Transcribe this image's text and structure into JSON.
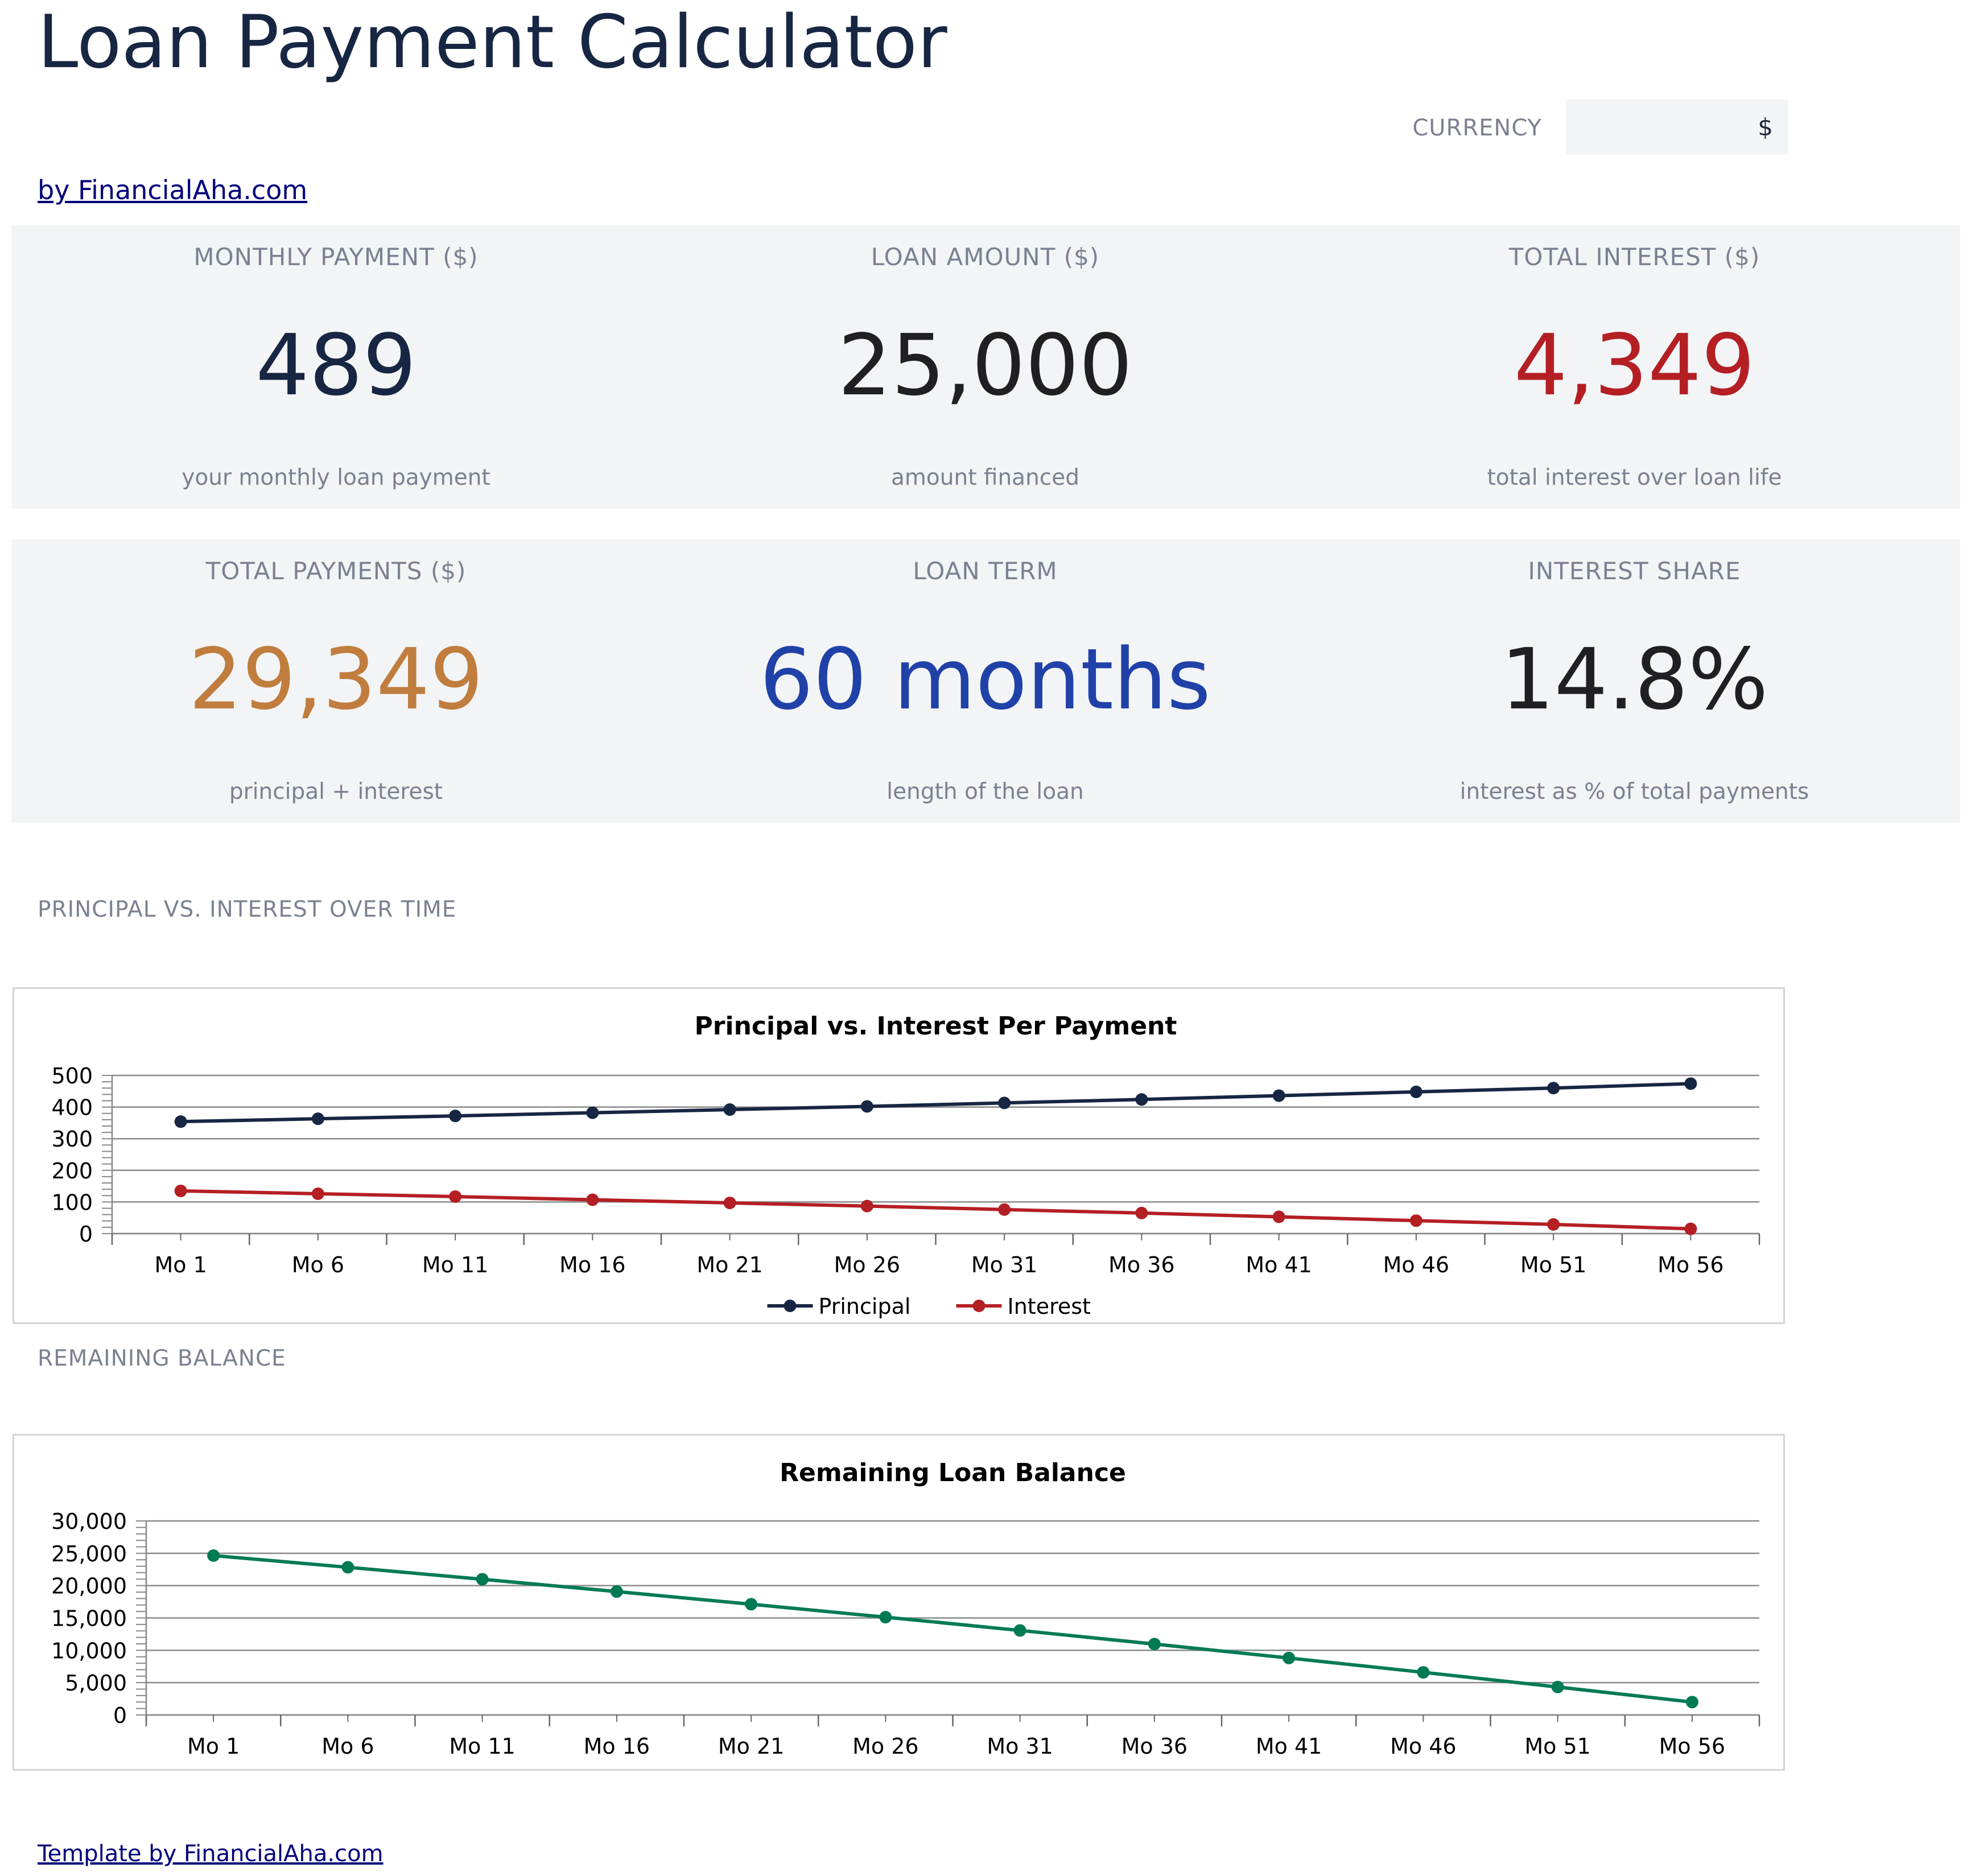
{
  "header": {
    "title": "Loan Payment Calculator",
    "currency_label": "CURRENCY",
    "currency_value": "$",
    "byline": "by FinancialAha.com"
  },
  "kpis": [
    {
      "label": "MONTHLY PAYMENT ($)",
      "value": "489",
      "sub": "your monthly loan payment",
      "color": "#172642"
    },
    {
      "label": "LOAN AMOUNT ($)",
      "value": "25,000",
      "sub": "amount financed",
      "color": "#1f1f24"
    },
    {
      "label": "TOTAL INTEREST ($)",
      "value": "4,349",
      "sub": "total interest over loan life",
      "color": "#b41f24"
    },
    {
      "label": "TOTAL PAYMENTS ($)",
      "value": "29,349",
      "sub": "principal + interest",
      "color": "#c07d3e"
    },
    {
      "label": "LOAN TERM",
      "value": "60 months",
      "sub": "length of the loan",
      "color": "#2041a8"
    },
    {
      "label": "INTEREST SHARE",
      "value": "14.8%",
      "sub": "interest as % of total payments",
      "color": "#1f1f24"
    }
  ],
  "sections": {
    "principal_interest": "PRINCIPAL VS. INTEREST OVER TIME",
    "remaining_balance": "REMAINING BALANCE"
  },
  "footer": {
    "link": "Template by FinancialAha.com"
  },
  "chart_data": [
    {
      "type": "line",
      "title": "Principal vs. Interest Per Payment",
      "categories": [
        "Mo 1",
        "Mo 6",
        "Mo 11",
        "Mo 16",
        "Mo 21",
        "Mo 26",
        "Mo 31",
        "Mo 36",
        "Mo 41",
        "Mo 46",
        "Mo 51",
        "Mo 56"
      ],
      "series": [
        {
          "name": "Principal",
          "color": "#172642",
          "values": [
            354,
            363,
            372,
            382,
            392,
            402,
            413,
            424,
            436,
            448,
            460,
            474
          ]
        },
        {
          "name": "Interest",
          "color": "#b41f24",
          "values": [
            135,
            126,
            117,
            107,
            97,
            87,
            76,
            65,
            53,
            41,
            29,
            15
          ]
        }
      ],
      "ylim": [
        0,
        500
      ],
      "yticks": [
        "0",
        "100",
        "200",
        "300",
        "400",
        "500"
      ],
      "grid": true,
      "legend": "bottom-center"
    },
    {
      "type": "line",
      "title": "Remaining Loan Balance",
      "categories": [
        "Mo 1",
        "Mo 6",
        "Mo 11",
        "Mo 16",
        "Mo 21",
        "Mo 26",
        "Mo 31",
        "Mo 36",
        "Mo 41",
        "Mo 46",
        "Mo 51",
        "Mo 56"
      ],
      "series": [
        {
          "name": "Balance",
          "color": "#007a55",
          "values": [
            24646,
            22836,
            20980,
            19077,
            17125,
            15123,
            13070,
            10965,
            8806,
            6592,
            4322,
            1994
          ]
        }
      ],
      "ylim": [
        0,
        30000
      ],
      "yticks": [
        "0",
        "5,000",
        "10,000",
        "15,000",
        "20,000",
        "25,000",
        "30,000"
      ],
      "grid": true,
      "legend": "none"
    }
  ]
}
